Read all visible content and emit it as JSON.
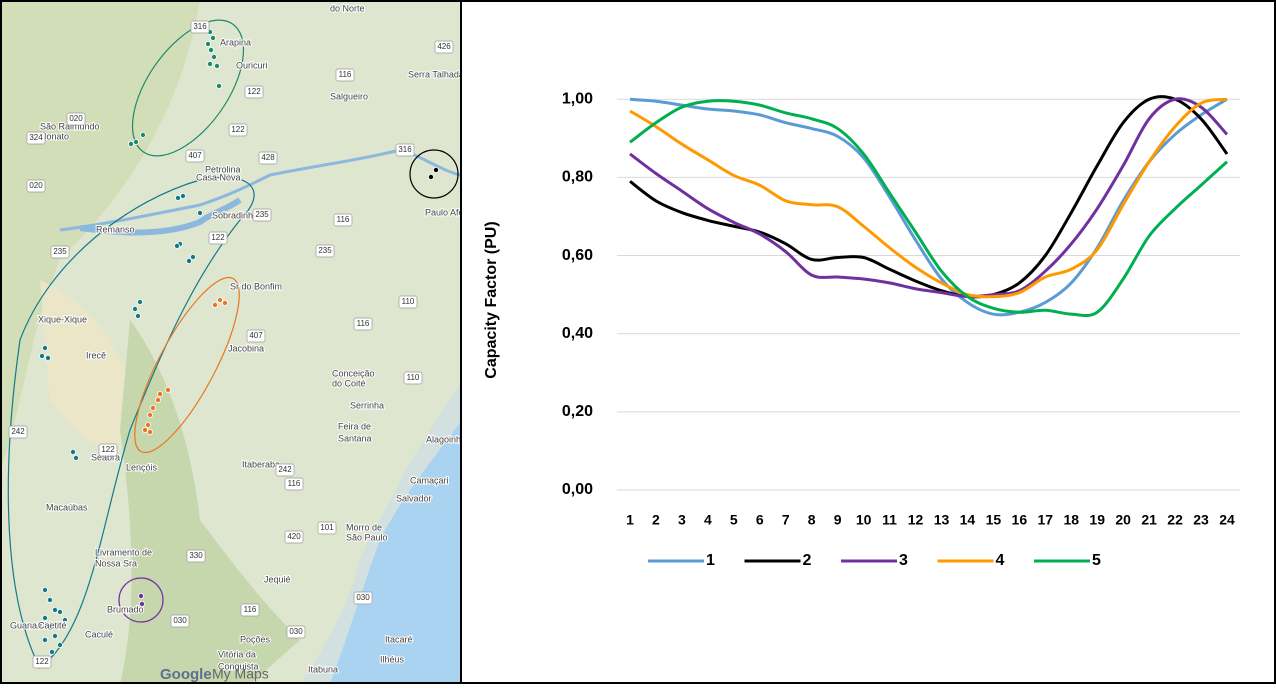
{
  "chart_data": {
    "type": "line",
    "ylabel": "Capacity Factor (PU)",
    "categories": [
      1,
      2,
      3,
      4,
      5,
      6,
      7,
      8,
      9,
      10,
      11,
      12,
      13,
      14,
      15,
      16,
      17,
      18,
      19,
      20,
      21,
      22,
      23,
      24
    ],
    "ylim": [
      0,
      1.08
    ],
    "yticks": [
      {
        "value": 0,
        "label": "0,00"
      },
      {
        "value": 0.2,
        "label": "0,20"
      },
      {
        "value": 0.4,
        "label": "0,40"
      },
      {
        "value": 0.6,
        "label": "0,60"
      },
      {
        "value": 0.8,
        "label": "0,80"
      },
      {
        "value": 1,
        "label": "1,00"
      }
    ],
    "grid": true,
    "legend": "bottom",
    "series": [
      {
        "name": "1",
        "color": "#5b9bd5",
        "values": [
          1.0,
          0.995,
          0.985,
          0.975,
          0.97,
          0.96,
          0.94,
          0.925,
          0.905,
          0.85,
          0.75,
          0.64,
          0.54,
          0.48,
          0.45,
          0.455,
          0.48,
          0.53,
          0.62,
          0.74,
          0.84,
          0.91,
          0.96,
          1.0
        ]
      },
      {
        "name": "2",
        "color": "#000000",
        "values": [
          0.79,
          0.74,
          0.71,
          0.69,
          0.675,
          0.66,
          0.63,
          0.59,
          0.595,
          0.595,
          0.565,
          0.535,
          0.51,
          0.495,
          0.5,
          0.53,
          0.6,
          0.71,
          0.83,
          0.94,
          1.0,
          1.0,
          0.95,
          0.86
        ]
      },
      {
        "name": "3",
        "color": "#7030a0",
        "values": [
          0.86,
          0.81,
          0.765,
          0.72,
          0.685,
          0.655,
          0.61,
          0.55,
          0.545,
          0.54,
          0.53,
          0.515,
          0.505,
          0.495,
          0.5,
          0.51,
          0.56,
          0.63,
          0.72,
          0.83,
          0.95,
          1.0,
          0.98,
          0.91
        ]
      },
      {
        "name": "4",
        "color": "#ff9900",
        "values": [
          0.97,
          0.93,
          0.885,
          0.845,
          0.805,
          0.78,
          0.74,
          0.73,
          0.725,
          0.675,
          0.62,
          0.57,
          0.53,
          0.5,
          0.495,
          0.505,
          0.545,
          0.565,
          0.615,
          0.73,
          0.84,
          0.93,
          0.99,
          1.0
        ]
      },
      {
        "name": "5",
        "color": "#00b050",
        "values": [
          0.89,
          0.94,
          0.98,
          0.995,
          0.995,
          0.985,
          0.965,
          0.95,
          0.925,
          0.86,
          0.76,
          0.66,
          0.56,
          0.495,
          0.465,
          0.455,
          0.46,
          0.45,
          0.455,
          0.54,
          0.65,
          0.72,
          0.78,
          0.84
        ]
      }
    ]
  },
  "map": {
    "labels": [
      "do Norte",
      "Ouricuri",
      "Serra Talhada",
      "Salgueiro",
      "São Raimundo",
      "Nonato",
      "Casa Nova",
      "Petrolina",
      "Sobradinho",
      "Remanso",
      "Paulo Afonso",
      "Xique-Xique",
      "Irecê",
      "Sr do Bonfim",
      "Jacobina",
      "Conceição",
      "do Coité",
      "Serrinha",
      "Feira de",
      "Santana",
      "Alagoinhas",
      "Seabra",
      "Lençóis",
      "Itaberaba",
      "Camaçari",
      "Salvador",
      "Macaúbas",
      "Morro de",
      "São Paulo",
      "Livramento de",
      "Nossa Sra",
      "Jequié",
      "Brumado",
      "Caculé",
      "Poções",
      "Itacaré",
      "Ilhéus",
      "Vitória da",
      "Conquista",
      "Itabuna",
      "Guanambi",
      "Caetité",
      "Arapina"
    ],
    "roads": [
      "316",
      "426",
      "116",
      "122",
      "020",
      "122",
      "324",
      "407",
      "428",
      "316",
      "020",
      "235",
      "235",
      "116",
      "235",
      "122",
      "407",
      "110",
      "116",
      "110",
      "242",
      "122",
      "242",
      "116",
      "101",
      "420",
      "330",
      "030",
      "116",
      "030",
      "030",
      "122"
    ],
    "logo": "Google",
    "logo_suffix": "My Maps"
  }
}
